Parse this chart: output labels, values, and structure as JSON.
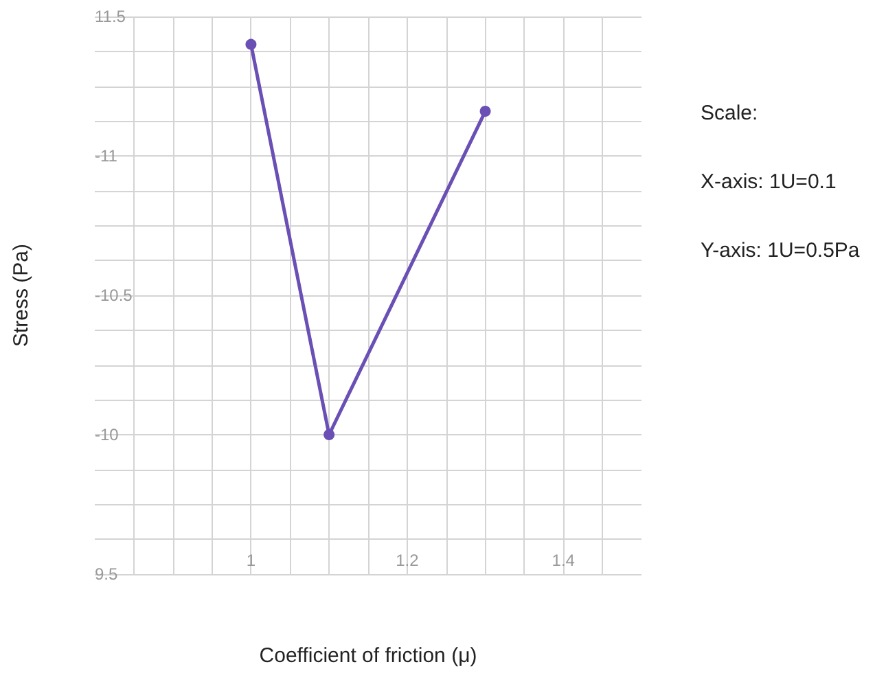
{
  "chart_data": {
    "type": "line",
    "xlabel": "Coefficient of friction (μ)",
    "ylabel": "Stress (Pa)",
    "annotations": [
      "Scale:",
      "X-axis: 1U=0.1",
      "Y-axis: 1U=0.5Pa"
    ],
    "x": [
      1,
      1.1,
      1.3
    ],
    "series": [
      {
        "color": "#6a4fb5",
        "values": [
          -11.4,
          -10,
          -11.16
        ]
      }
    ],
    "xlim": [
      0.8,
      1.5
    ],
    "xticks": [
      {
        "value": 0.85,
        "label": null
      },
      {
        "value": 0.9,
        "label": null
      },
      {
        "value": 0.95,
        "label": null
      },
      1,
      {
        "value": 1.05,
        "label": null
      },
      {
        "value": 1.1,
        "label": null
      },
      {
        "value": 1.15,
        "label": null
      },
      1.2,
      {
        "value": 1.25,
        "label": null
      },
      {
        "value": 1.3,
        "label": null
      },
      {
        "value": 1.35,
        "label": null
      },
      1.4,
      {
        "value": 1.45,
        "label": null
      }
    ],
    "ylim": [
      -9.5,
      -11.5
    ],
    "yticks": [
      {
        "value": -11.5,
        "label": "11.5"
      },
      {
        "value": -11.375,
        "label": null
      },
      {
        "value": -11.25,
        "label": null
      },
      {
        "value": -11.125,
        "label": null
      },
      -11,
      {
        "value": -10.875,
        "label": null
      },
      {
        "value": -10.75,
        "label": null
      },
      {
        "value": -10.625,
        "label": null
      },
      -10.5,
      {
        "value": -10.375,
        "label": null
      },
      {
        "value": -10.25,
        "label": null
      },
      {
        "value": -10.125,
        "label": null
      },
      -10,
      {
        "value": -9.875,
        "label": null
      },
      {
        "value": -9.75,
        "label": null
      },
      {
        "value": -9.625,
        "label": null
      },
      {
        "value": -9.5,
        "label": "9.5"
      }
    ],
    "grid": true,
    "marker": "circle",
    "line_style": "solid"
  }
}
